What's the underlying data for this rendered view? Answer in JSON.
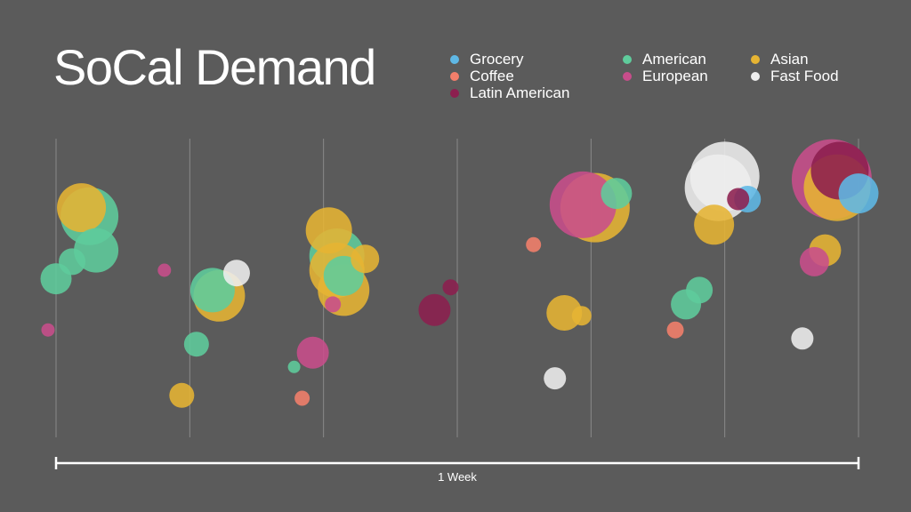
{
  "title": "SoCal Demand",
  "chart_data": {
    "type": "scatter",
    "title": "SoCal Demand",
    "xlabel": "1 Week",
    "ylabel": "",
    "x_range": [
      0,
      6
    ],
    "grid": "vertical lines at each day",
    "legend_placement": "top-right",
    "series": [
      {
        "name": "Grocery",
        "color": "#5fb8e6",
        "points": [
          {
            "x": 5.17,
            "y": 0.8,
            "size": 30
          },
          {
            "x": 6.0,
            "y": 0.82,
            "size": 45
          }
        ]
      },
      {
        "name": "American",
        "color": "#5fcc9c",
        "points": [
          {
            "x": 0.25,
            "y": 0.74,
            "size": 65
          },
          {
            "x": 0.3,
            "y": 0.62,
            "size": 50
          },
          {
            "x": 0.12,
            "y": 0.58,
            "size": 30
          },
          {
            "x": 0.0,
            "y": 0.52,
            "size": 35
          },
          {
            "x": 1.17,
            "y": 0.48,
            "size": 50
          },
          {
            "x": 1.05,
            "y": 0.29,
            "size": 28
          },
          {
            "x": 2.1,
            "y": 0.6,
            "size": 62
          },
          {
            "x": 2.15,
            "y": 0.53,
            "size": 45
          },
          {
            "x": 1.78,
            "y": 0.21,
            "size": 14
          },
          {
            "x": 4.19,
            "y": 0.82,
            "size": 35
          },
          {
            "x": 4.81,
            "y": 0.48,
            "size": 30
          },
          {
            "x": 4.71,
            "y": 0.43,
            "size": 34
          }
        ]
      },
      {
        "name": "Asian",
        "color": "#e6b433",
        "points": [
          {
            "x": 0.19,
            "y": 0.77,
            "size": 55
          },
          {
            "x": 0.94,
            "y": 0.11,
            "size": 28
          },
          {
            "x": 1.22,
            "y": 0.46,
            "size": 58
          },
          {
            "x": 2.1,
            "y": 0.55,
            "size": 62
          },
          {
            "x": 2.15,
            "y": 0.48,
            "size": 58
          },
          {
            "x": 2.31,
            "y": 0.59,
            "size": 32
          },
          {
            "x": 2.04,
            "y": 0.69,
            "size": 52
          },
          {
            "x": 4.03,
            "y": 0.77,
            "size": 78
          },
          {
            "x": 3.8,
            "y": 0.4,
            "size": 40
          },
          {
            "x": 3.93,
            "y": 0.39,
            "size": 22
          },
          {
            "x": 4.92,
            "y": 0.71,
            "size": 45
          },
          {
            "x": 5.84,
            "y": 0.84,
            "size": 75
          },
          {
            "x": 5.75,
            "y": 0.62,
            "size": 36
          }
        ]
      },
      {
        "name": "Coffee",
        "color": "#f47f6b",
        "points": [
          {
            "x": 3.57,
            "y": 0.64,
            "size": 17
          },
          {
            "x": 4.63,
            "y": 0.34,
            "size": 19
          },
          {
            "x": 1.84,
            "y": 0.1,
            "size": 17
          }
        ]
      },
      {
        "name": "European",
        "color": "#c84d8b",
        "points": [
          {
            "x": -0.06,
            "y": 0.34,
            "size": 15
          },
          {
            "x": 0.81,
            "y": 0.55,
            "size": 15
          },
          {
            "x": 1.92,
            "y": 0.26,
            "size": 36
          },
          {
            "x": 2.07,
            "y": 0.43,
            "size": 18
          },
          {
            "x": 3.94,
            "y": 0.78,
            "size": 75
          },
          {
            "x": 5.8,
            "y": 0.87,
            "size": 90
          },
          {
            "x": 5.67,
            "y": 0.58,
            "size": 33
          }
        ]
      },
      {
        "name": "Fast Food",
        "color": "#eeeeee",
        "points": [
          {
            "x": 1.35,
            "y": 0.54,
            "size": 30
          },
          {
            "x": 3.73,
            "y": 0.17,
            "size": 25
          },
          {
            "x": 5.0,
            "y": 0.88,
            "size": 78
          },
          {
            "x": 4.95,
            "y": 0.84,
            "size": 75
          },
          {
            "x": 5.58,
            "y": 0.31,
            "size": 25
          }
        ]
      },
      {
        "name": "Latin American",
        "color": "#8c1f4f",
        "points": [
          {
            "x": 2.95,
            "y": 0.49,
            "size": 18
          },
          {
            "x": 2.83,
            "y": 0.41,
            "size": 36
          },
          {
            "x": 5.86,
            "y": 0.9,
            "size": 65
          },
          {
            "x": 5.1,
            "y": 0.8,
            "size": 25
          }
        ]
      }
    ]
  },
  "legend": {
    "items": [
      {
        "label": "Grocery",
        "color": "#5fb8e6"
      },
      {
        "label": "Coffee",
        "color": "#f47f6b"
      },
      {
        "label": "Latin American",
        "color": "#8c1f4f"
      },
      {
        "label": "American",
        "color": "#5fcc9c"
      },
      {
        "label": "European",
        "color": "#c84d8b"
      },
      {
        "label": "Asian",
        "color": "#e6b433"
      },
      {
        "label": "Fast Food",
        "color": "#eeeeee"
      }
    ]
  },
  "axis": {
    "label": "1 Week"
  }
}
